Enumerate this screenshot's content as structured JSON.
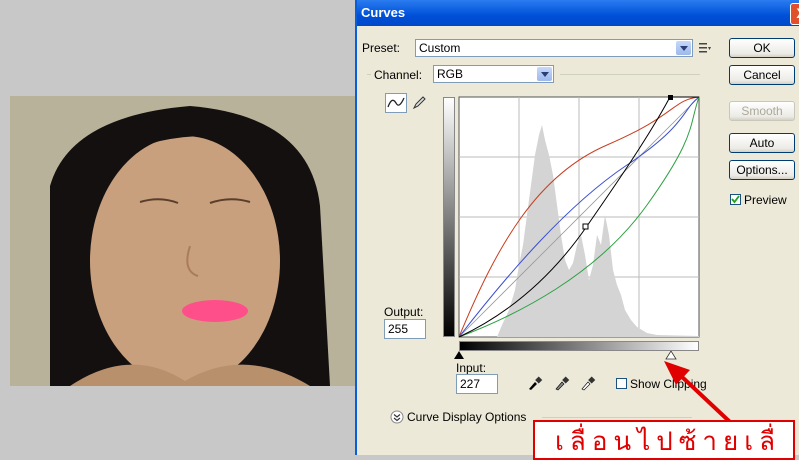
{
  "dialog": {
    "title": "Curves",
    "close_label": "X",
    "preset_label": "Preset:",
    "preset_value": "Custom",
    "channel_label": "Channel:",
    "channel_value": "RGB",
    "output_label": "Output:",
    "output_value": "255",
    "input_label": "Input:",
    "input_value": "227",
    "show_clipping_label": "Show Clipping",
    "curve_display_label": "Curve Display Options",
    "preview_label": "Preview",
    "preview_checked": true,
    "show_clipping_checked": false
  },
  "buttons": {
    "ok": "OK",
    "cancel": "Cancel",
    "smooth": "Smooth",
    "auto": "Auto",
    "options": "Options..."
  },
  "annotation": {
    "callout_text": "เลื่อนไปซ้ายเลื่",
    "arrow_color": "#e00000"
  },
  "colors": {
    "titlebar": "#0050d8",
    "red_curve": "#c83c1e",
    "blue_curve": "#3a4ed0",
    "green_curve": "#2ca040",
    "composite_curve": "#000000"
  },
  "icons": {
    "curve_tool": "curve-pencil-icon",
    "pencil_tool": "pencil-icon",
    "eyedroppers": [
      "black-eyedropper-icon",
      "gray-eyedropper-icon",
      "white-eyedropper-icon"
    ]
  }
}
